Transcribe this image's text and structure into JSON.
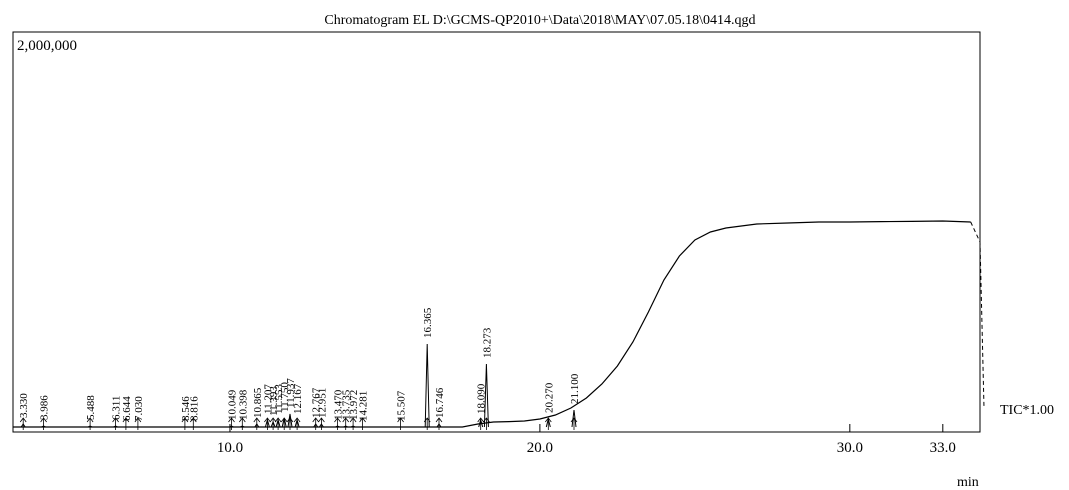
{
  "chart_data": {
    "type": "line",
    "title": "Chromatogram EL D:\\GCMS-QP2010+\\Data\\2018\\MAY\\07.05.18\\0414.qgd",
    "xlabel": "min",
    "ylabel": "",
    "y_max_label": "2,000,000",
    "trace_label": "TIC*1.00",
    "xlim": [
      3.0,
      34.2
    ],
    "ylim": [
      0,
      2000000
    ],
    "x_ticks": [
      10.0,
      20.0,
      30.0,
      33.0
    ],
    "x_tick_labels": [
      "10.0",
      "20.0",
      "30.0",
      "33.0"
    ],
    "grid": false,
    "legend": "none",
    "series": [
      {
        "x": [
          3.0,
          3.3,
          4.0,
          5.0,
          6.0,
          7.0,
          8.0,
          9.0,
          10.0,
          11.0,
          12.0,
          13.0,
          14.0,
          15.0,
          16.0,
          16.3,
          16.6,
          17.0,
          17.5,
          18.0,
          18.5,
          19.0,
          19.5,
          20.0,
          20.5,
          21.0,
          21.5,
          22.0,
          22.5,
          23.0,
          23.5,
          24.0,
          24.5,
          25.0,
          25.5,
          26.0,
          26.5,
          27.0,
          28.0,
          29.0,
          30.0,
          31.0,
          32.0,
          33.0,
          33.9,
          34.2
        ],
        "values": [
          25000,
          25000,
          25000,
          25000,
          25000,
          25000,
          25000,
          25000,
          25000,
          25000,
          25000,
          25000,
          25000,
          25000,
          25000,
          25000,
          25000,
          25000,
          25000,
          40000,
          50000,
          52000,
          55000,
          65000,
          85000,
          120000,
          170000,
          240000,
          330000,
          450000,
          600000,
          760000,
          880000,
          960000,
          1000000,
          1020000,
          1030000,
          1040000,
          1045000,
          1050000,
          1050000,
          1052000,
          1053000,
          1055000,
          1050000,
          950000
        ]
      }
    ],
    "peaks": [
      {
        "rt": 3.33,
        "label": "3.330",
        "height": 40000
      },
      {
        "rt": 3.986,
        "label": "3.986",
        "height": 30000
      },
      {
        "rt": 5.488,
        "label": "5.488",
        "height": 30000
      },
      {
        "rt": 6.311,
        "label": "6.311",
        "height": 30000
      },
      {
        "rt": 6.644,
        "label": "6.644",
        "height": 25000
      },
      {
        "rt": 7.03,
        "label": "7.030",
        "height": 25000
      },
      {
        "rt": 8.546,
        "label": "8.546",
        "height": 25000
      },
      {
        "rt": 8.816,
        "label": "8.816",
        "height": 25000
      },
      {
        "rt": 10.049,
        "label": "10.049",
        "height": 30000
      },
      {
        "rt": 10.398,
        "label": "10.398",
        "height": 30000
      },
      {
        "rt": 10.865,
        "label": "10.865",
        "height": 40000
      },
      {
        "rt": 11.207,
        "label": "11.207",
        "height": 60000
      },
      {
        "rt": 11.393,
        "label": "11.393",
        "height": 50000
      },
      {
        "rt": 11.553,
        "label": "11.553",
        "height": 60000
      },
      {
        "rt": 11.75,
        "label": "11.750",
        "height": 70000
      },
      {
        "rt": 11.937,
        "label": "11.937",
        "height": 90000
      },
      {
        "rt": 12.167,
        "label": "12.167",
        "height": 60000
      },
      {
        "rt": 12.767,
        "label": "12.767",
        "height": 40000
      },
      {
        "rt": 12.951,
        "label": "12.951",
        "height": 40000
      },
      {
        "rt": 13.47,
        "label": "13.470",
        "height": 30000
      },
      {
        "rt": 13.735,
        "label": "13.735",
        "height": 30000
      },
      {
        "rt": 13.972,
        "label": "13.972",
        "height": 30000
      },
      {
        "rt": 14.281,
        "label": "14.281",
        "height": 25000
      },
      {
        "rt": 15.507,
        "label": "15.507",
        "height": 25000
      },
      {
        "rt": 16.365,
        "label": "16.365",
        "height": 440000
      },
      {
        "rt": 16.746,
        "label": "16.746",
        "height": 40000
      },
      {
        "rt": 18.09,
        "label": "18.090",
        "height": 60000
      },
      {
        "rt": 18.273,
        "label": "18.273",
        "height": 340000
      },
      {
        "rt": 20.27,
        "label": "20.270",
        "height": 65000
      },
      {
        "rt": 21.1,
        "label": "21.100",
        "height": 110000
      }
    ]
  }
}
